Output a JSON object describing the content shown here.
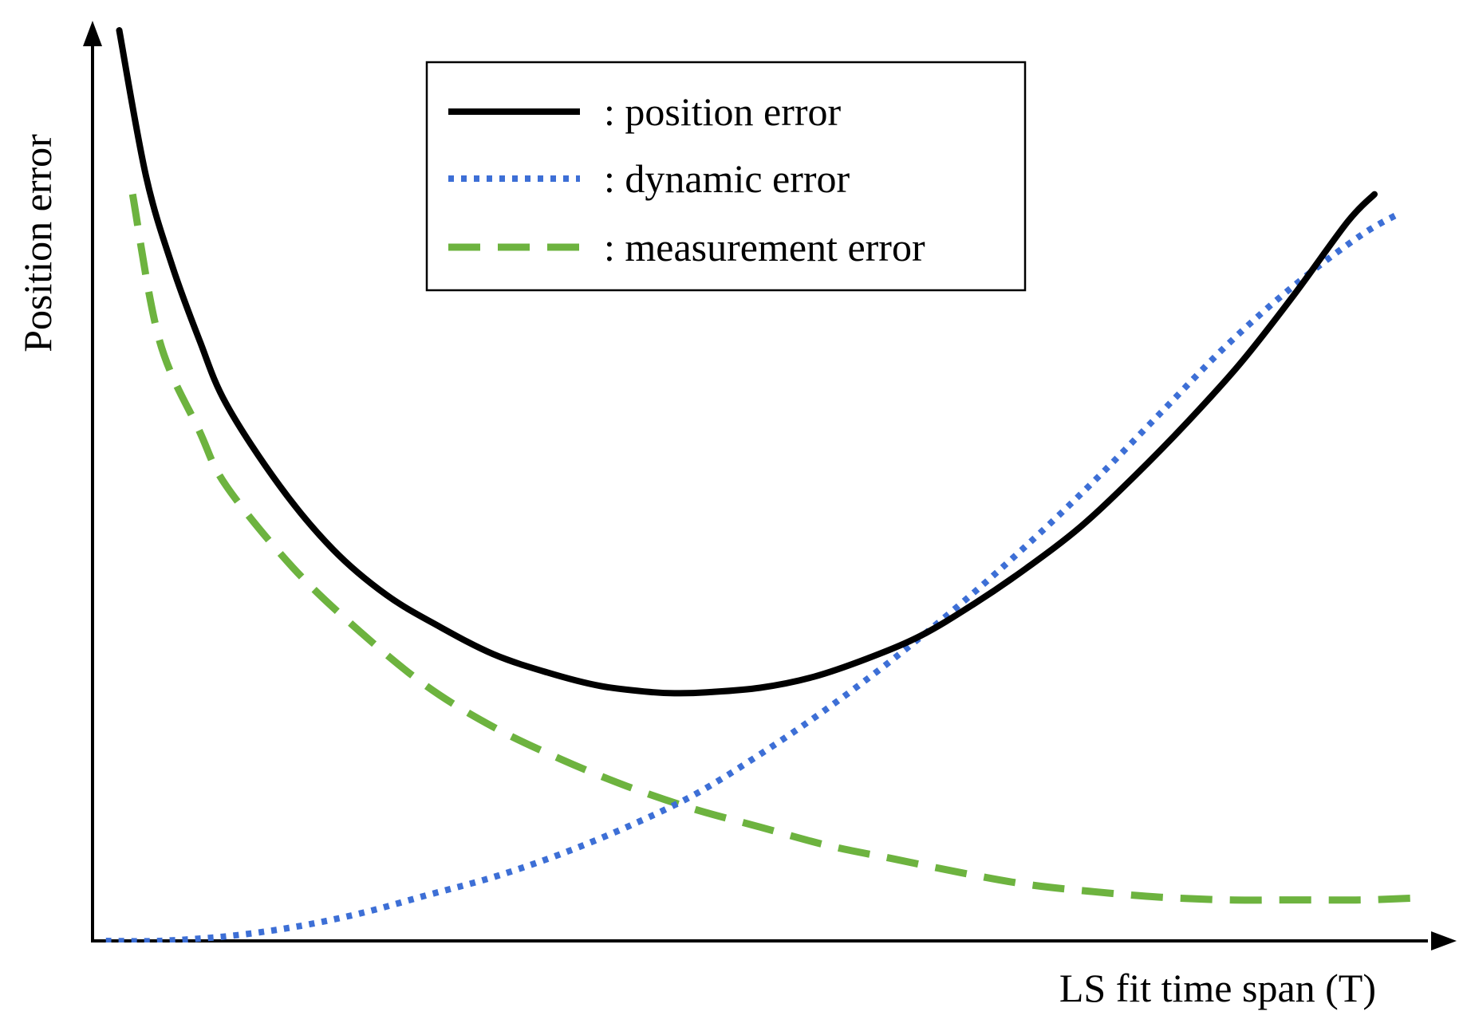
{
  "chart_data": {
    "type": "line",
    "title": "",
    "xlabel": "LS fit time span (T)",
    "ylabel": "Position error",
    "xlim": [
      0,
      1
    ],
    "ylim": [
      0,
      1
    ],
    "grid": false,
    "axis_ticks": false,
    "legend_position": "top-center",
    "series": [
      {
        "name": ": position error",
        "style": "solid",
        "color": "#000000",
        "x": [
          0.02,
          0.04,
          0.06,
          0.08,
          0.1,
          0.14,
          0.18,
          0.22,
          0.26,
          0.3,
          0.34,
          0.38,
          0.42,
          0.44,
          0.46,
          0.5,
          0.54,
          0.58,
          0.62,
          0.66,
          0.7,
          0.74,
          0.78,
          0.82,
          0.86,
          0.9,
          0.94,
          0.96
        ],
        "y": [
          1.0,
          0.84,
          0.74,
          0.66,
          0.59,
          0.5,
          0.43,
          0.38,
          0.345,
          0.315,
          0.295,
          0.28,
          0.273,
          0.272,
          0.273,
          0.278,
          0.29,
          0.31,
          0.335,
          0.37,
          0.41,
          0.455,
          0.51,
          0.57,
          0.635,
          0.71,
          0.79,
          0.82
        ]
      },
      {
        "name": ": dynamic error",
        "style": "dotted",
        "color": "#3d6fd6",
        "x": [
          0.01,
          0.05,
          0.1,
          0.15,
          0.2,
          0.25,
          0.3,
          0.35,
          0.4,
          0.45,
          0.5,
          0.55,
          0.6,
          0.65,
          0.7,
          0.75,
          0.8,
          0.85,
          0.9,
          0.95,
          0.98
        ],
        "y": [
          0.0,
          0.0,
          0.005,
          0.015,
          0.03,
          0.05,
          0.07,
          0.095,
          0.125,
          0.16,
          0.205,
          0.255,
          0.31,
          0.37,
          0.435,
          0.505,
          0.58,
          0.655,
          0.72,
          0.775,
          0.8
        ]
      },
      {
        "name": ": measurement error",
        "style": "dashed",
        "color": "#6db33f",
        "x": [
          0.03,
          0.05,
          0.08,
          0.1,
          0.15,
          0.2,
          0.25,
          0.3,
          0.35,
          0.4,
          0.45,
          0.5,
          0.55,
          0.6,
          0.65,
          0.7,
          0.75,
          0.8,
          0.85,
          0.9,
          0.95,
          0.99
        ],
        "y": [
          0.82,
          0.66,
          0.56,
          0.5,
          0.41,
          0.34,
          0.28,
          0.235,
          0.2,
          0.17,
          0.145,
          0.125,
          0.105,
          0.09,
          0.075,
          0.062,
          0.054,
          0.048,
          0.045,
          0.045,
          0.045,
          0.047
        ]
      }
    ]
  }
}
